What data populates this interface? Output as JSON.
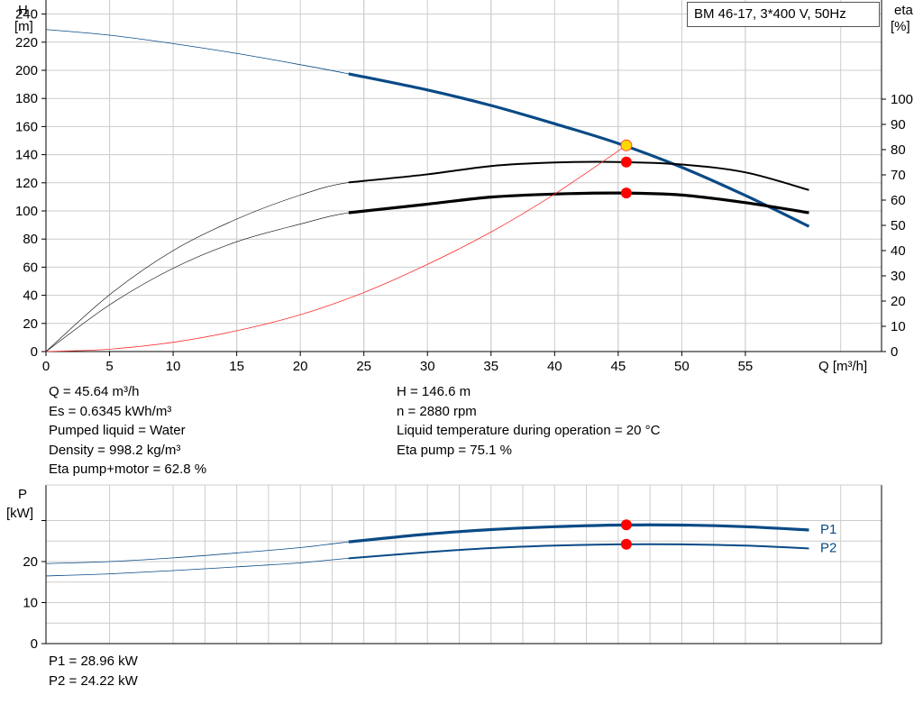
{
  "title": "BM 46-17, 3*400 V, 50Hz",
  "colors": {
    "head": "#0a4a86",
    "eta": "#000000",
    "system": "#ff3030",
    "power": "#0a4a86",
    "point": "#ff0000",
    "point_yellow": "#ffd800",
    "grid": "#cccccc"
  },
  "chart_data": [
    {
      "type": "line",
      "name": "head-efficiency",
      "xlabel": "Q [m³/h]",
      "ylabel_left": [
        "H",
        "[m]"
      ],
      "ylabel_right": [
        "eta",
        "[%]"
      ],
      "xlim": [
        0,
        65
      ],
      "ylim_left": [
        0,
        250
      ],
      "ylim_right": [
        0,
        100
      ],
      "x_ticks": [
        0,
        5,
        10,
        15,
        20,
        25,
        30,
        35,
        40,
        45,
        50,
        55
      ],
      "y_ticks_left": [
        0,
        20,
        40,
        60,
        80,
        100,
        120,
        140,
        160,
        180,
        200,
        220,
        240
      ],
      "y_ticks_right": [
        0,
        10,
        20,
        30,
        40,
        50,
        60,
        70,
        80,
        90,
        100
      ],
      "grid": true,
      "series": [
        {
          "key": "H",
          "axis": "left",
          "x": [
            0,
            5,
            10,
            15,
            20,
            23.8,
            30,
            35,
            40,
            45,
            50,
            55,
            60
          ],
          "y": [
            229,
            225,
            219,
            212,
            204,
            197.5,
            186,
            175,
            162,
            148,
            131,
            111,
            89
          ],
          "operating_range": [
            23.8,
            60
          ]
        },
        {
          "key": "eta_pump",
          "axis": "right",
          "x": [
            0,
            5,
            10,
            15,
            20,
            23.8,
            30,
            35,
            40,
            45,
            50,
            55,
            60
          ],
          "y": [
            0,
            22.5,
            40,
            52.5,
            62,
            67,
            70.2,
            73.5,
            74.9,
            75.1,
            74.1,
            71,
            64
          ],
          "operating_range": [
            23.8,
            60
          ]
        },
        {
          "key": "eta_pump_motor",
          "axis": "right",
          "x": [
            0,
            5,
            10,
            15,
            20,
            23.8,
            30,
            35,
            40,
            45,
            50,
            55,
            60
          ],
          "y": [
            0,
            18.5,
            33,
            43.5,
            50.5,
            55,
            58.4,
            61.2,
            62.4,
            62.8,
            62,
            59,
            55
          ],
          "operating_range": [
            23.8,
            60
          ]
        },
        {
          "key": "system",
          "axis": "left",
          "x": [
            0,
            5,
            10,
            15,
            20,
            25,
            30,
            35,
            40,
            45.64
          ],
          "y": [
            0,
            1.7,
            6.6,
            14.8,
            26.2,
            42,
            62,
            85,
            112,
            146.6
          ]
        }
      ],
      "points": [
        {
          "x": 45.64,
          "axis": "left",
          "y": 146.6,
          "style": "yellow"
        },
        {
          "x": 45.64,
          "axis": "right",
          "y": 75.1,
          "style": "red"
        },
        {
          "x": 45.64,
          "axis": "right",
          "y": 62.8,
          "style": "red"
        }
      ]
    },
    {
      "type": "line",
      "name": "power",
      "ylabel": [
        "P",
        "[kW]"
      ],
      "xlim": [
        0,
        65
      ],
      "ylim": [
        0,
        30
      ],
      "y_ticks": [
        0,
        10,
        20
      ],
      "grid": true,
      "series": [
        {
          "name": "P1",
          "x": [
            0,
            5,
            10,
            15,
            20,
            23.8,
            30,
            35,
            40,
            45,
            50,
            55,
            60
          ],
          "y": [
            19.5,
            20,
            20.9,
            22.1,
            23.4,
            24.8,
            26.7,
            27.8,
            28.5,
            28.9,
            28.9,
            28.5,
            27.7
          ],
          "operating_range": [
            23.8,
            60
          ]
        },
        {
          "name": "P2",
          "x": [
            0,
            5,
            10,
            15,
            20,
            23.8,
            30,
            35,
            40,
            45,
            50,
            55,
            60
          ],
          "y": [
            16.5,
            17,
            17.8,
            18.7,
            19.7,
            20.8,
            22.3,
            23.3,
            23.9,
            24.2,
            24.2,
            23.9,
            23.2
          ],
          "operating_range": [
            23.8,
            60
          ]
        }
      ],
      "points": [
        {
          "x": 45.64,
          "y": 28.96,
          "style": "red"
        },
        {
          "x": 45.64,
          "y": 24.22,
          "style": "red"
        }
      ]
    }
  ],
  "info": {
    "q": "Q = 45.64 m³/h",
    "es": "Es = 0.6345 kWh/m³",
    "liquid": "Pumped liquid = Water",
    "density": "Density = 998.2 kg/m³",
    "eta_pm": "Eta pump+motor = 62.8 %",
    "h": "H = 146.6 m",
    "n": "n = 2880 rpm",
    "temp": "Liquid temperature during operation = 20 °C",
    "eta_p": "Eta pump = 75.1 %",
    "p1": "P1 = 28.96 kW",
    "p2": "P2 = 24.22 kW"
  }
}
